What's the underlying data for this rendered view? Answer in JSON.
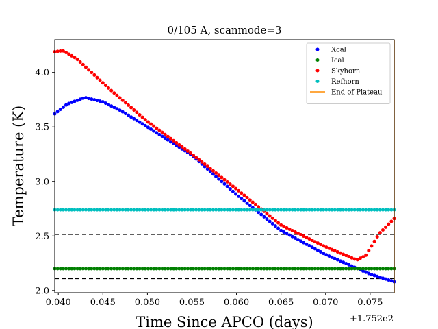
{
  "chart_data": {
    "type": "scatter",
    "title": "0/105 A, scanmode=3",
    "xlabel": "Time Since APCO (days)",
    "ylabel": "Temperature (K)",
    "x_offset_label": "+1.752e2",
    "xlim": [
      0.0396,
      0.0777
    ],
    "ylim": [
      1.98,
      4.3
    ],
    "xticks": [
      0.04,
      0.045,
      0.05,
      0.055,
      0.06,
      0.065,
      0.07,
      0.075
    ],
    "xtick_labels": [
      "0.040",
      "0.045",
      "0.050",
      "0.055",
      "0.060",
      "0.065",
      "0.070",
      "0.075"
    ],
    "yticks": [
      2.0,
      2.5,
      3.0,
      3.5,
      4.0
    ],
    "ytick_labels": [
      "2.0",
      "2.5",
      "3.0",
      "3.5",
      "4.0"
    ],
    "grid": false,
    "legend_position": "top-right",
    "series": [
      {
        "name": "Xcal",
        "color": "#0000ff",
        "marker": "dot",
        "points": [
          [
            0.0396,
            3.62
          ],
          [
            0.041,
            3.71
          ],
          [
            0.043,
            3.77
          ],
          [
            0.045,
            3.73
          ],
          [
            0.047,
            3.65
          ],
          [
            0.05,
            3.5
          ],
          [
            0.055,
            3.24
          ],
          [
            0.06,
            2.88
          ],
          [
            0.065,
            2.55
          ],
          [
            0.07,
            2.33
          ],
          [
            0.075,
            2.15
          ],
          [
            0.0777,
            2.08
          ]
        ]
      },
      {
        "name": "Ical",
        "color": "#008000",
        "marker": "dot",
        "points": [
          [
            0.0396,
            2.2
          ],
          [
            0.0777,
            2.2
          ]
        ]
      },
      {
        "name": "Skyhorn",
        "color": "#ff0000",
        "marker": "dot",
        "points": [
          [
            0.0396,
            4.19
          ],
          [
            0.0405,
            4.2
          ],
          [
            0.042,
            4.13
          ],
          [
            0.044,
            3.98
          ],
          [
            0.046,
            3.83
          ],
          [
            0.05,
            3.55
          ],
          [
            0.055,
            3.25
          ],
          [
            0.06,
            2.93
          ],
          [
            0.065,
            2.6
          ],
          [
            0.07,
            2.4
          ],
          [
            0.0735,
            2.28
          ],
          [
            0.0745,
            2.32
          ],
          [
            0.076,
            2.52
          ],
          [
            0.0777,
            2.66
          ]
        ]
      },
      {
        "name": "Refhorn",
        "color": "#00bfbf",
        "marker": "dot",
        "points": [
          [
            0.0396,
            2.74
          ],
          [
            0.0777,
            2.74
          ]
        ]
      },
      {
        "name": "End of Plateau",
        "color": "#ff8c00",
        "marker": "line",
        "points": [
          [
            0.0777,
            1.98
          ],
          [
            0.0777,
            4.3
          ]
        ]
      }
    ],
    "reference_lines": [
      {
        "y": 2.515,
        "style": "dashed",
        "color": "#000000"
      },
      {
        "y": 2.11,
        "style": "dashed",
        "color": "#000000"
      }
    ]
  }
}
